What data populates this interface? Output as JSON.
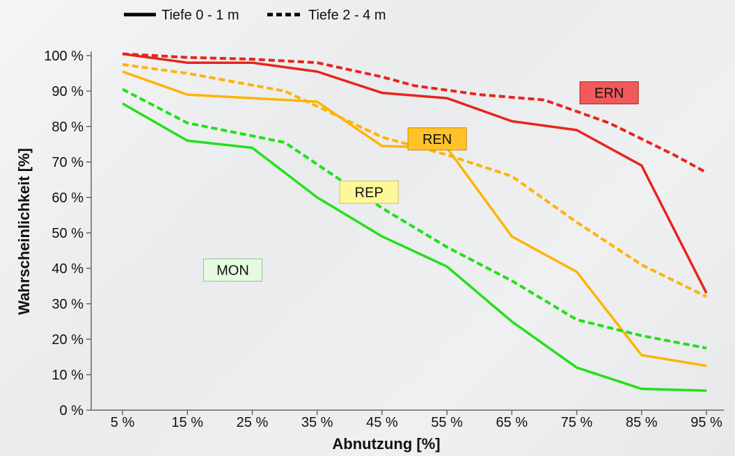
{
  "chart_data": {
    "type": "line",
    "xlabel": "Abnutzung [%]",
    "ylabel": "Wahrscheinlichkeit [%]",
    "x": [
      5,
      15,
      25,
      35,
      45,
      55,
      65,
      75,
      85,
      95
    ],
    "x_tick_labels": [
      "5 %",
      "15 %",
      "25 %",
      "35 %",
      "45 %",
      "55 %",
      "65 %",
      "75 %",
      "85 %",
      "95 %"
    ],
    "y_ticks": [
      0,
      10,
      20,
      30,
      40,
      50,
      60,
      70,
      80,
      90,
      100
    ],
    "y_tick_labels": [
      "0 %",
      "10 %",
      "20 %",
      "30 %",
      "40 %",
      "50 %",
      "60 %",
      "70 %",
      "80 %",
      "90 %",
      "100 %"
    ],
    "ylim": [
      0,
      100
    ],
    "xlim": [
      5,
      95
    ],
    "grid": false,
    "legend": {
      "position": "top-left",
      "items": [
        {
          "label": "Tiefe 0 - 1 m",
          "style": "solid"
        },
        {
          "label": "Tiefe 2 - 4 m",
          "style": "dashed"
        }
      ]
    },
    "series": [
      {
        "category": "ERN",
        "depth_style": "solid",
        "color": "#e8231c",
        "points": [
          [
            5,
            100.5
          ],
          [
            15,
            98
          ],
          [
            25,
            98
          ],
          [
            35,
            95.5
          ],
          [
            45,
            89.5
          ],
          [
            55,
            88
          ],
          [
            65,
            81.5
          ],
          [
            75,
            79
          ],
          [
            85,
            69
          ],
          [
            95,
            33
          ]
        ]
      },
      {
        "category": "ERN",
        "depth_style": "dashed",
        "color": "#e8231c",
        "points": [
          [
            5,
            100.5
          ],
          [
            15,
            99.5
          ],
          [
            25,
            99
          ],
          [
            35,
            98
          ],
          [
            45,
            94
          ],
          [
            50,
            91.5
          ],
          [
            60,
            89
          ],
          [
            70,
            87.5
          ],
          [
            80,
            81
          ],
          [
            90,
            72
          ],
          [
            95,
            67
          ]
        ]
      },
      {
        "category": "REN",
        "depth_style": "solid",
        "color": "#ffb300",
        "points": [
          [
            5,
            95.5
          ],
          [
            15,
            89
          ],
          [
            25,
            88
          ],
          [
            35,
            87
          ],
          [
            45,
            74.5
          ],
          [
            55,
            74
          ],
          [
            65,
            49
          ],
          [
            75,
            39
          ],
          [
            85,
            15.5
          ],
          [
            95,
            12.5
          ]
        ]
      },
      {
        "category": "REN",
        "depth_style": "dashed",
        "color": "#ffb300",
        "points": [
          [
            5,
            97.5
          ],
          [
            15,
            95
          ],
          [
            30,
            90
          ],
          [
            45,
            77
          ],
          [
            55,
            72
          ],
          [
            65,
            66
          ],
          [
            75,
            53
          ],
          [
            85,
            41
          ],
          [
            95,
            32
          ]
        ]
      },
      {
        "category": "MON",
        "depth_style": "solid",
        "color": "#22e01a",
        "points": [
          [
            5,
            86.5
          ],
          [
            15,
            76
          ],
          [
            25,
            74
          ],
          [
            35,
            60
          ],
          [
            45,
            49
          ],
          [
            55,
            40.5
          ],
          [
            65,
            25
          ],
          [
            75,
            12
          ],
          [
            85,
            6
          ],
          [
            95,
            5.5
          ]
        ]
      },
      {
        "category": "MON",
        "depth_style": "dashed",
        "color": "#22e01a",
        "points": [
          [
            5,
            90.5
          ],
          [
            15,
            81
          ],
          [
            30,
            75.5
          ],
          [
            45,
            57
          ],
          [
            55,
            46
          ],
          [
            65,
            36.5
          ],
          [
            75,
            25.5
          ],
          [
            85,
            21
          ],
          [
            95,
            17.5
          ]
        ]
      }
    ],
    "annotations": [
      {
        "text": "ERN",
        "x": 80,
        "y": 89.5,
        "fill": "#f05a5a",
        "stroke": "#b02020"
      },
      {
        "text": "REN",
        "x": 53.5,
        "y": 76.5,
        "fill": "#ffc329",
        "stroke": "#c98b00"
      },
      {
        "text": "REP",
        "x": 43,
        "y": 61.5,
        "fill": "#fff899",
        "stroke": "#c9c27a"
      },
      {
        "text": "MON",
        "x": 22,
        "y": 39.5,
        "fill": "#e4fbe0",
        "stroke": "#9bbf95"
      }
    ]
  }
}
